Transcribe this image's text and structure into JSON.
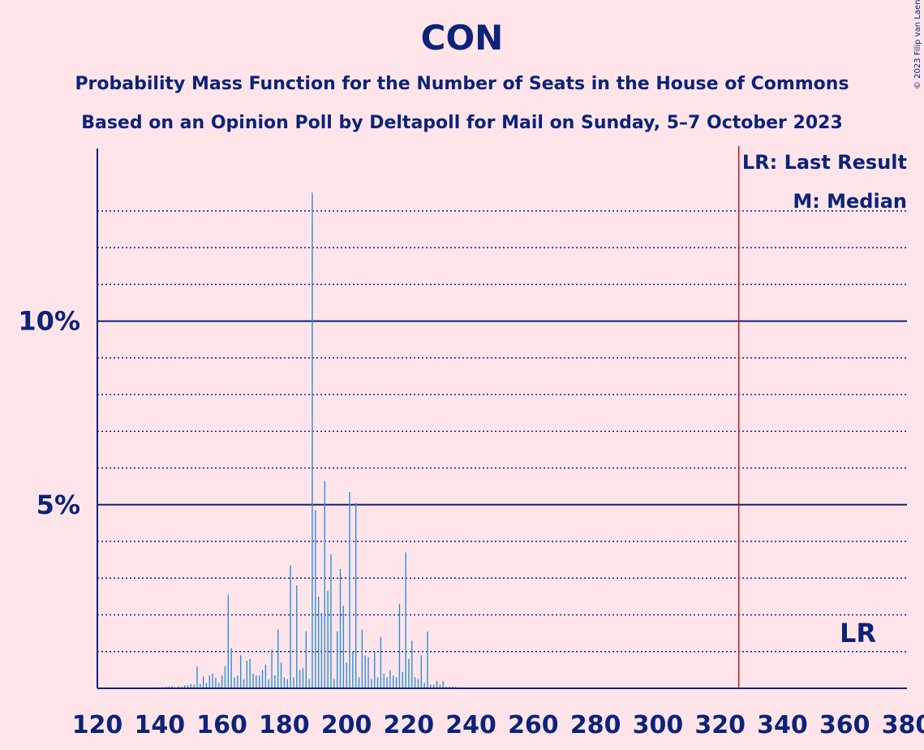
{
  "copyright": "© 2023 Filip van Laenen",
  "colors": {
    "background": "#FFE5EA",
    "text": "#0C2379",
    "bar": "#2F8FD8",
    "last_result_line": "#C0172B"
  },
  "chart_data": {
    "type": "bar",
    "title": "CON",
    "subtitle": "Probability Mass Function for the Number of Seats in the House of Commons",
    "subtitle2": "Based on an Opinion Poll by Deltapoll for Mail on Sunday, 5–7 October 2023",
    "xlabel": "",
    "ylabel": "",
    "xlim": [
      120,
      380
    ],
    "ylim": [
      0,
      14.7
    ],
    "x_ticks": [
      120,
      140,
      160,
      180,
      200,
      220,
      240,
      260,
      280,
      300,
      320,
      340,
      360,
      380
    ],
    "y_major_ticks": [
      {
        "value": 5,
        "label": "5%"
      },
      {
        "value": 10,
        "label": "10%"
      }
    ],
    "y_minor_gridlines": [
      1,
      2,
      3,
      4,
      6,
      7,
      8,
      9,
      11,
      12,
      13
    ],
    "legend": {
      "lr": "LR: Last Result",
      "median": "M: Median"
    },
    "last_result": {
      "seats": 326,
      "label": "LR"
    },
    "x": [
      130,
      131,
      132,
      133,
      134,
      135,
      136,
      137,
      138,
      139,
      140,
      141,
      142,
      143,
      144,
      145,
      146,
      147,
      148,
      149,
      150,
      151,
      152,
      153,
      154,
      155,
      156,
      157,
      158,
      159,
      160,
      161,
      162,
      163,
      164,
      165,
      166,
      167,
      168,
      169,
      170,
      171,
      172,
      173,
      174,
      175,
      176,
      177,
      178,
      179,
      180,
      181,
      182,
      183,
      184,
      185,
      186,
      187,
      188,
      189,
      190,
      191,
      192,
      193,
      194,
      195,
      196,
      197,
      198,
      199,
      200,
      201,
      202,
      203,
      204,
      205,
      206,
      207,
      208,
      209,
      210,
      211,
      212,
      213,
      214,
      215,
      216,
      217,
      218,
      219,
      220,
      221,
      222,
      223,
      224,
      225,
      226,
      227,
      228,
      229,
      230,
      231,
      232,
      233,
      234,
      235,
      236,
      237,
      238,
      239,
      240,
      241,
      242,
      243,
      244,
      245,
      246
    ],
    "values": [
      0.02,
      0.02,
      0.02,
      0.02,
      0.02,
      0.02,
      0.02,
      0.02,
      0.02,
      0.02,
      0.03,
      0.03,
      0.04,
      0.05,
      0.06,
      0.03,
      0.05,
      0.04,
      0.08,
      0.09,
      0.12,
      0.1,
      0.6,
      0.12,
      0.32,
      0.15,
      0.35,
      0.4,
      0.28,
      0.15,
      0.35,
      0.6,
      2.55,
      1.1,
      0.3,
      0.35,
      0.9,
      0.25,
      0.75,
      0.8,
      0.4,
      0.35,
      0.35,
      0.5,
      0.65,
      0.25,
      1.05,
      0.35,
      1.6,
      0.7,
      0.3,
      0.25,
      3.35,
      0.3,
      2.8,
      0.5,
      0.55,
      1.55,
      0.25,
      13.5,
      4.85,
      2.5,
      2.05,
      5.65,
      2.65,
      3.65,
      0.25,
      1.55,
      3.25,
      2.25,
      0.7,
      5.35,
      1.0,
      5.05,
      0.3,
      1.6,
      0.9,
      0.85,
      0.25,
      1.0,
      0.3,
      1.4,
      0.4,
      0.3,
      0.5,
      0.35,
      0.3,
      2.3,
      0.45,
      3.7,
      0.8,
      1.3,
      0.3,
      0.25,
      0.9,
      0.15,
      1.55,
      0.1,
      0.1,
      0.2,
      0.1,
      0.2,
      0.05,
      0.05,
      0.05,
      0.04,
      0.03,
      0.03,
      0.02,
      0.02,
      0.02,
      0.02,
      0.02,
      0.02,
      0.02,
      0.02,
      0.01
    ]
  }
}
